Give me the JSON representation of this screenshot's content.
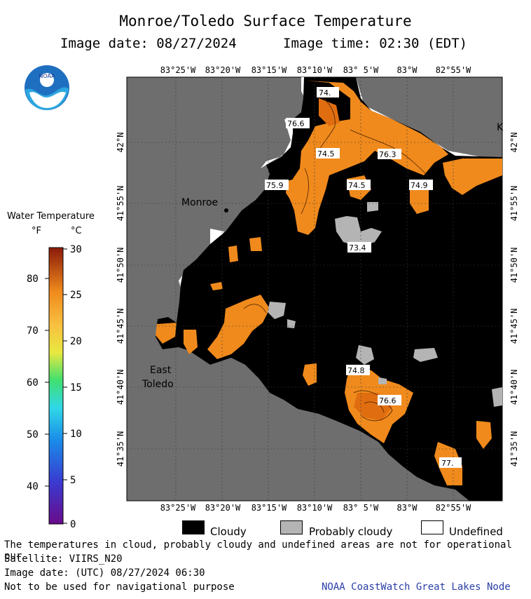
{
  "header": {
    "title": "Monroe/Toledo Surface Temperature",
    "image_date": "Image date: 08/27/2024",
    "image_time": "Image time: 02:30 (EDT)"
  },
  "logo": {
    "text": "NOAA",
    "icon": "noaa-logo-icon"
  },
  "map": {
    "lon_labels": [
      "83°25'W",
      "83°20'W",
      "83°15'W",
      "83°10'W",
      "83° 5'W",
      "83°W",
      "82°55'W"
    ],
    "lat_labels": [
      "42°N",
      "41°55'N",
      "41°50'N",
      "41°45'N",
      "41°40'N",
      "41°35'N"
    ],
    "towns": [
      "Monroe",
      "East",
      "Toledo"
    ],
    "edge_letter": "K",
    "temperature_labels": [
      "74.",
      "76.6",
      "74.5",
      "76.3",
      "75.9",
      "74.5",
      "74.9",
      "73.4",
      "74.8",
      "76.6",
      "77."
    ],
    "colors": {
      "land": "#6e6e6e",
      "cloudy": "#000000",
      "probably_cloudy": "#b4b4b4",
      "undefined": "#ffffff",
      "warm_water": "#f08a1c"
    }
  },
  "legend": {
    "title": "Water Temperature",
    "unit_f": "°F",
    "unit_c": "°C",
    "f_ticks": [
      "80",
      "70",
      "60",
      "50",
      "40"
    ],
    "c_ticks": [
      "30",
      "25",
      "20",
      "15",
      "10",
      "5",
      "0"
    ]
  },
  "key": {
    "cloudy": "Cloudy",
    "probably_cloudy": "Probably cloudy",
    "undefined": "Undefined"
  },
  "footer": {
    "note": "The temperatures in cloud, probably cloudy and undefined areas are not for operational pur",
    "satellite": "Satellite: VIIRS_N20",
    "utc_date": "Image date: (UTC) 08/27/2024  06:30",
    "navigation": "Not to be used for navigational purpose",
    "credit": "NOAA CoastWatch Great Lakes Node"
  }
}
